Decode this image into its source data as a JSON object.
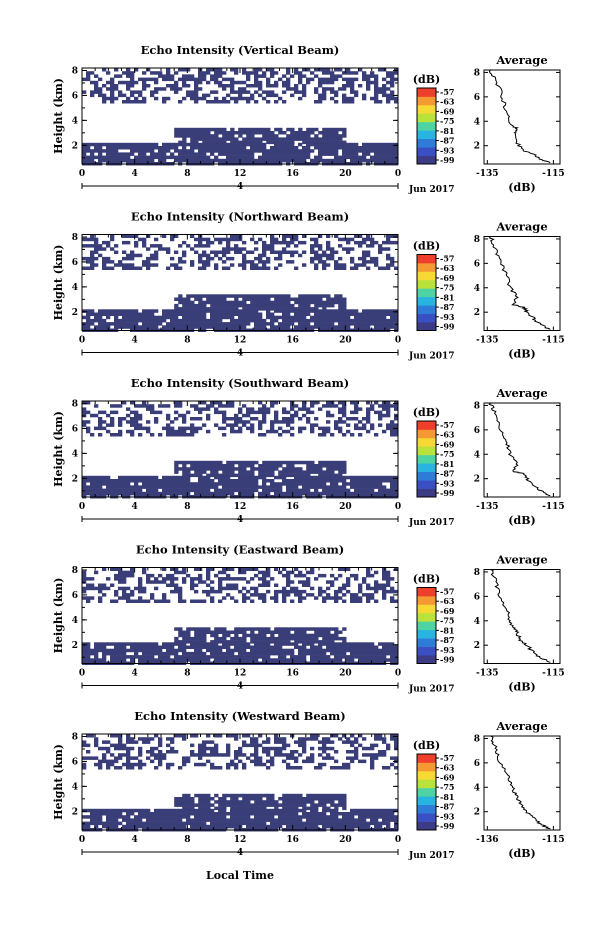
{
  "chart_data": {
    "type": "heatmap",
    "xlabel": "Local Time",
    "date_label": "Jun 2017",
    "x_ticks": [
      "0",
      "4",
      "8",
      "12",
      "16",
      "20",
      "0"
    ],
    "day_marker": "4",
    "ylabel": "Height (km)",
    "y_ticks": [
      "2",
      "4",
      "6",
      "8"
    ],
    "y_range": [
      0.5,
      8.2
    ],
    "colorbar": {
      "unit": "(dB)",
      "ticks": [
        "-57",
        "-63",
        "-69",
        "-75",
        "-81",
        "-87",
        "-93",
        "-99"
      ],
      "colors": [
        "#3b3c85",
        "#3b4fc4",
        "#2e7bd8",
        "#27b4e0",
        "#4ed3a2",
        "#b9e23a",
        "#f6d935",
        "#f59a33",
        "#ee3f2c"
      ]
    },
    "average_panel": {
      "title": "Average",
      "xlabel": "(dB)",
      "x_ticks": [
        "-135",
        "-115"
      ],
      "y_ticks": [
        "2",
        "4",
        "6",
        "8"
      ]
    },
    "panels": [
      {
        "title": "Echo Intensity (Vertical Beam)",
        "avg_ticks": [
          "-135",
          "-115"
        ],
        "avg_profile": [
          [
            -116,
            0.6
          ],
          [
            -119,
            0.9
          ],
          [
            -121,
            1.3
          ],
          [
            -124,
            1.6
          ],
          [
            -126,
            2.2
          ],
          [
            -127,
            3.0
          ],
          [
            -126,
            3.4
          ],
          [
            -128,
            3.8
          ],
          [
            -129,
            4.5
          ],
          [
            -130,
            5.5
          ],
          [
            -131,
            6.5
          ],
          [
            -133,
            7.5
          ],
          [
            -134,
            8.2
          ]
        ]
      },
      {
        "title": "Echo Intensity (Northward Beam)",
        "avg_ticks": [
          "-135",
          "-115"
        ],
        "avg_profile": [
          [
            -116,
            0.6
          ],
          [
            -119,
            1.0
          ],
          [
            -121,
            1.5
          ],
          [
            -123,
            2.0
          ],
          [
            -124,
            2.4
          ],
          [
            -127,
            2.6
          ],
          [
            -126,
            3.2
          ],
          [
            -128,
            4.0
          ],
          [
            -129,
            4.8
          ],
          [
            -130,
            5.6
          ],
          [
            -132,
            6.6
          ],
          [
            -133,
            7.5
          ],
          [
            -134,
            8.2
          ]
        ]
      },
      {
        "title": "Echo Intensity (Southward Beam)",
        "avg_ticks": [
          "-135",
          "-115"
        ],
        "avg_profile": [
          [
            -116,
            0.6
          ],
          [
            -119,
            1.0
          ],
          [
            -121,
            1.5
          ],
          [
            -123,
            2.0
          ],
          [
            -124,
            2.4
          ],
          [
            -127,
            2.6
          ],
          [
            -126,
            3.2
          ],
          [
            -128,
            4.0
          ],
          [
            -129,
            4.8
          ],
          [
            -130,
            5.6
          ],
          [
            -132,
            6.6
          ],
          [
            -133,
            7.5
          ],
          [
            -134,
            8.2
          ]
        ]
      },
      {
        "title": "Echo Intensity (Eastward Beam)",
        "avg_ticks": [
          "-135",
          "-115"
        ],
        "avg_profile": [
          [
            -116,
            0.6
          ],
          [
            -119,
            1.0
          ],
          [
            -121,
            1.4
          ],
          [
            -123,
            2.0
          ],
          [
            -125,
            2.4
          ],
          [
            -126,
            3.0
          ],
          [
            -127,
            3.4
          ],
          [
            -128,
            4.0
          ],
          [
            -129,
            4.8
          ],
          [
            -131,
            5.8
          ],
          [
            -132,
            6.8
          ],
          [
            -133,
            7.6
          ],
          [
            -134,
            8.2
          ]
        ]
      },
      {
        "title": "Echo Intensity (Westward Beam)",
        "avg_ticks": [
          "-136",
          "-115"
        ],
        "avg_profile": [
          [
            -116,
            0.6
          ],
          [
            -119,
            1.0
          ],
          [
            -121,
            1.5
          ],
          [
            -123,
            2.0
          ],
          [
            -125,
            2.6
          ],
          [
            -126,
            3.2
          ],
          [
            -127,
            3.8
          ],
          [
            -128,
            4.4
          ],
          [
            -129,
            5.0
          ],
          [
            -131,
            6.0
          ],
          [
            -132,
            6.8
          ],
          [
            -133,
            7.6
          ],
          [
            -134,
            8.2
          ]
        ]
      }
    ],
    "echo_mask": {
      "fill_color": "#3a3e78",
      "time_range_h": [
        0,
        24
      ],
      "layers": [
        {
          "from_km": 0.6,
          "to_km": 2.2,
          "t_start_h": 0,
          "t_end_h": 24,
          "density": 0.9
        },
        {
          "from_km": 2.2,
          "to_km": 3.4,
          "t_start_h": 7,
          "t_end_h": 20,
          "density": 0.85
        },
        {
          "from_km": 5.5,
          "to_km": 8.2,
          "t_start_h": 0,
          "t_end_h": 24,
          "density": 0.45
        }
      ]
    }
  }
}
